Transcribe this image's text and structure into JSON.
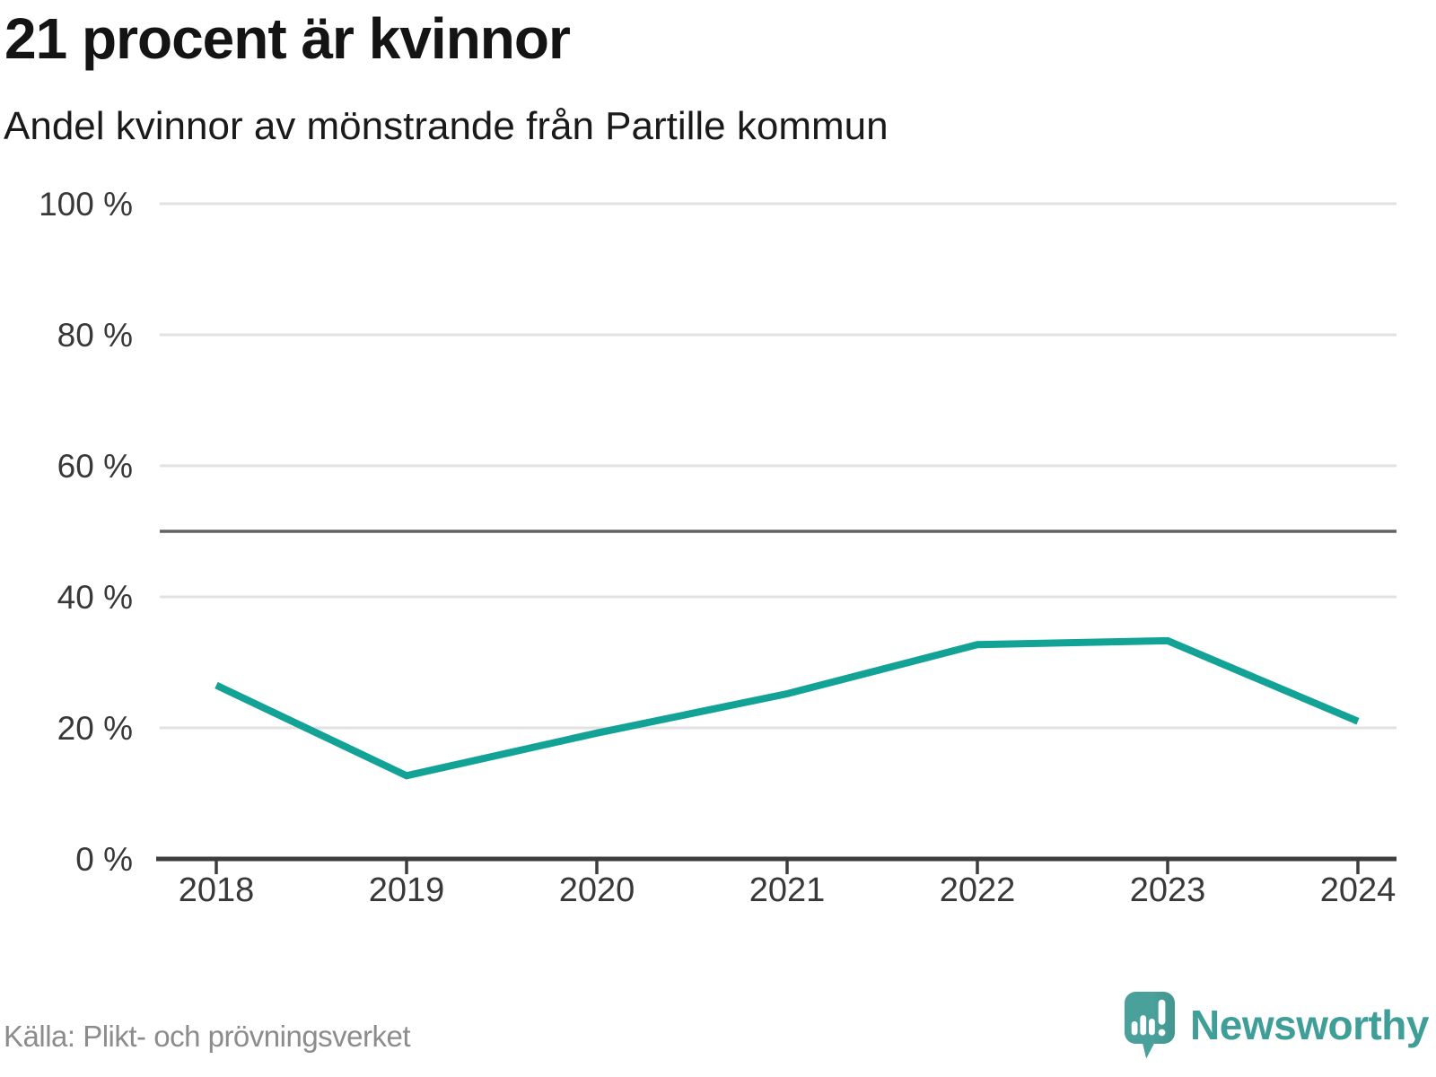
{
  "header": {
    "title": "21 procent är kvinnor",
    "subtitle": "Andel kvinnor av mönstrande från Partille kommun"
  },
  "footer": {
    "source": "Källa: Plikt- och prövningsverket",
    "brand": "Newsworthy"
  },
  "icons": {
    "logo": "newsworthy-speech-bubble-bar-chart-icon"
  },
  "colors": {
    "line": "#12a296",
    "grid": "#e2e2e2",
    "reference_line": "#636363",
    "axis": "#3d3d3d",
    "tick_label": "#383838",
    "title": "#141414",
    "subtitle": "#1a1a1a",
    "source": "#8c8c8c",
    "brand_text": "#3f9e98",
    "logo_icon": "#4aa09b"
  },
  "chart_data": {
    "type": "line",
    "title": "21 procent är kvinnor",
    "subtitle": "Andel kvinnor av mönstrande från Partille kommun",
    "x": [
      "2018",
      "2019",
      "2020",
      "2021",
      "2022",
      "2023",
      "2024"
    ],
    "series": [
      {
        "name": "Andel kvinnor av mönstrande, Partille kommun",
        "values": [
          26.5,
          12.7,
          19.2,
          25.2,
          32.7,
          33.3,
          21.0
        ]
      }
    ],
    "ylim": [
      0,
      100
    ],
    "yticks": [
      0,
      20,
      40,
      60,
      80,
      100
    ],
    "ytick_format": "{v} %",
    "reference_line": 50,
    "grid": "horizontal",
    "legend": "none",
    "source": "Källa: Plikt- och prövningsverket"
  }
}
